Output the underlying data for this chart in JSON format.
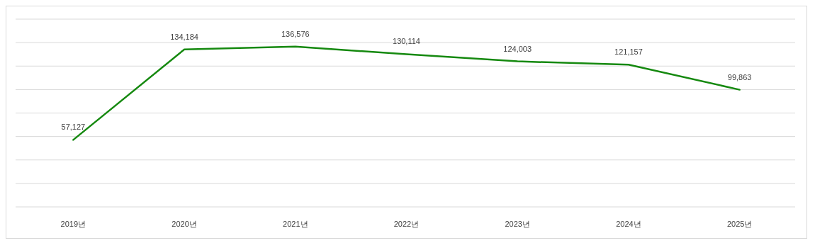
{
  "chart_data": {
    "type": "line",
    "categories": [
      "2019년",
      "2020년",
      "2021년",
      "2022년",
      "2023년",
      "2024년",
      "2025년"
    ],
    "series": [
      {
        "color": "#15890f",
        "values": [
          57127,
          134184,
          136576,
          130114,
          124003,
          121157,
          99863
        ],
        "value_labels": [
          "57,127",
          "134,184",
          "136,576",
          "130,114",
          "124,003",
          "121,157",
          "99,863"
        ]
      }
    ],
    "grid": "y",
    "tick_labels": "x"
  }
}
